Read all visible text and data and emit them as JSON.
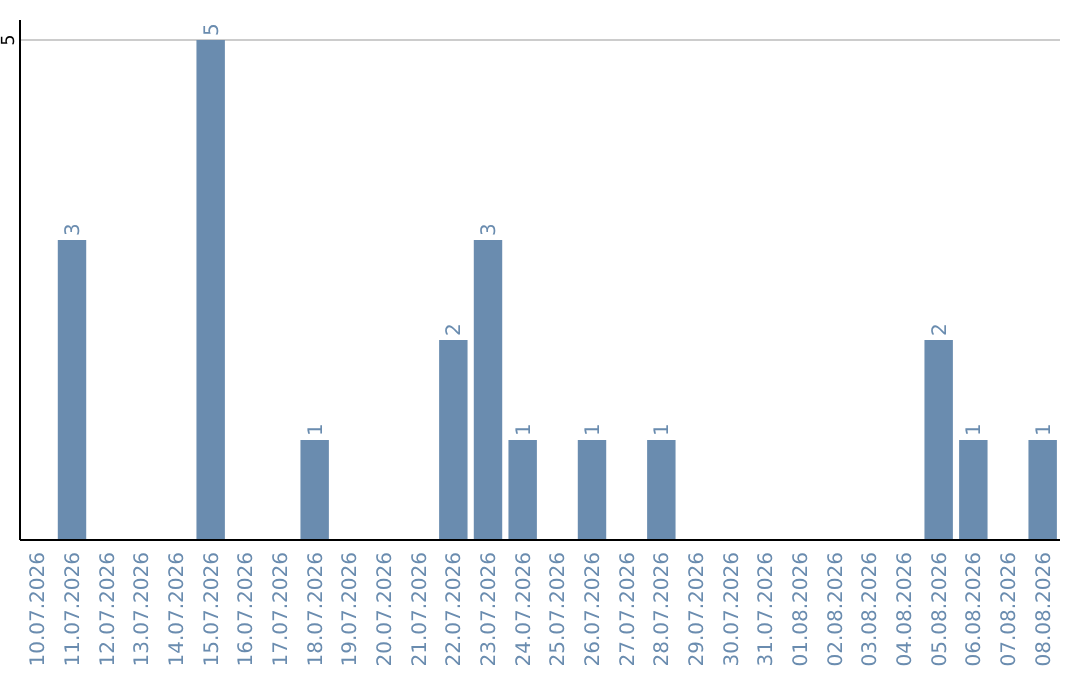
{
  "chart_data": {
    "type": "bar",
    "categories": [
      "10.07.2026",
      "11.07.2026",
      "12.07.2026",
      "13.07.2026",
      "14.07.2026",
      "15.07.2026",
      "16.07.2026",
      "17.07.2026",
      "18.07.2026",
      "19.07.2026",
      "20.07.2026",
      "21.07.2026",
      "22.07.2026",
      "23.07.2026",
      "24.07.2026",
      "25.07.2026",
      "26.07.2026",
      "27.07.2026",
      "28.07.2026",
      "29.07.2026",
      "30.07.2026",
      "31.07.2026",
      "01.08.2026",
      "02.08.2026",
      "03.08.2026",
      "04.08.2026",
      "05.08.2026",
      "06.08.2026",
      "07.08.2026",
      "08.08.2026"
    ],
    "values": [
      null,
      3,
      null,
      null,
      null,
      5,
      null,
      null,
      1,
      null,
      null,
      null,
      2,
      3,
      1,
      null,
      1,
      null,
      1,
      null,
      null,
      null,
      null,
      null,
      null,
      null,
      2,
      1,
      null,
      1
    ],
    "color": "#6a8caf",
    "ylim": [
      0,
      5
    ],
    "yticks": [
      5
    ],
    "ref_lines": [
      {
        "axis": "y",
        "value": 5,
        "color": "#cccccc"
      }
    ],
    "data_labels": true
  }
}
